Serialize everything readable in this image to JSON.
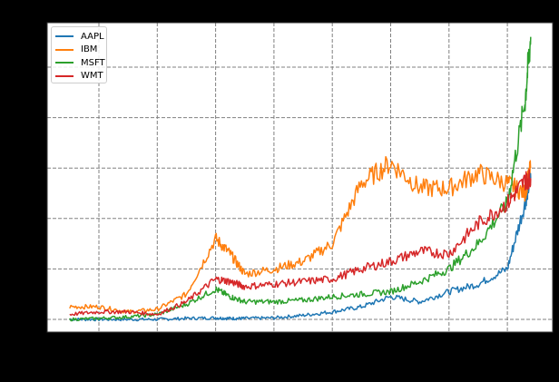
{
  "chart_data": {
    "type": "line",
    "title": "",
    "xlabel": "",
    "ylabel": "",
    "note": "Tick labels and axis labels are rendered black on a black background and are not visible; values below are in relative units (0 = lowest gridline, 1 unit = one gridline step) at relative x positions (0 = first vertical gridline, 1 unit = one gridline step).",
    "grid": true,
    "grid_style": "dashed gray",
    "legend_position": "upper left",
    "x_gridlines": 8,
    "y_gridlines": 6,
    "xlim": [
      -0.89,
      7.8
    ],
    "ylim": [
      -0.25,
      5.9
    ],
    "x": [
      -0.5,
      0.0,
      0.5,
      1.0,
      1.5,
      2.0,
      2.25,
      2.5,
      3.0,
      3.5,
      4.0,
      4.5,
      5.0,
      5.5,
      6.0,
      6.5,
      7.0,
      7.3,
      7.4
    ],
    "series": [
      {
        "name": "AAPL",
        "color": "#1f77b4",
        "values": [
          0.0,
          0.0,
          0.0,
          0.0,
          0.02,
          0.03,
          0.02,
          0.02,
          0.03,
          0.08,
          0.15,
          0.25,
          0.45,
          0.35,
          0.55,
          0.7,
          1.0,
          2.3,
          2.8
        ]
      },
      {
        "name": "IBM",
        "color": "#ff7f0e",
        "values": [
          0.25,
          0.25,
          0.15,
          0.2,
          0.5,
          1.6,
          1.3,
          0.9,
          1.0,
          1.15,
          1.5,
          2.7,
          3.1,
          2.6,
          2.6,
          2.9,
          2.7,
          2.5,
          3.0
        ]
      },
      {
        "name": "MSFT",
        "color": "#2ca02c",
        "values": [
          0.0,
          0.02,
          0.05,
          0.1,
          0.3,
          0.6,
          0.45,
          0.35,
          0.35,
          0.38,
          0.45,
          0.5,
          0.55,
          0.75,
          1.0,
          1.5,
          2.3,
          4.3,
          5.6
        ]
      },
      {
        "name": "WMT",
        "color": "#d62728",
        "values": [
          0.1,
          0.15,
          0.15,
          0.1,
          0.35,
          0.8,
          0.75,
          0.65,
          0.7,
          0.75,
          0.8,
          1.0,
          1.15,
          1.35,
          1.3,
          1.9,
          2.3,
          2.75,
          2.8
        ]
      }
    ]
  },
  "legend": {
    "items": [
      {
        "label": "AAPL",
        "color": "#1f77b4"
      },
      {
        "label": "IBM",
        "color": "#ff7f0e"
      },
      {
        "label": "MSFT",
        "color": "#2ca02c"
      },
      {
        "label": "WMT",
        "color": "#d62728"
      }
    ]
  },
  "plot": {
    "background": "#ffffff",
    "figure_background": "#000000",
    "grid_color": "#808080"
  }
}
